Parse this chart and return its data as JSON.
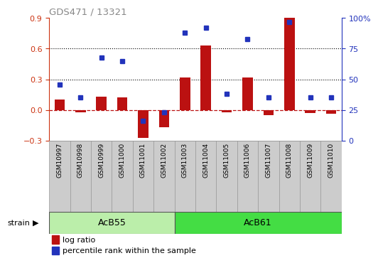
{
  "title": "GDS471 / 13321",
  "samples": [
    "GSM10997",
    "GSM10998",
    "GSM10999",
    "GSM11000",
    "GSM11001",
    "GSM11002",
    "GSM11003",
    "GSM11004",
    "GSM11005",
    "GSM11006",
    "GSM11007",
    "GSM11008",
    "GSM11009",
    "GSM11010"
  ],
  "log_ratio": [
    0.1,
    -0.02,
    0.13,
    0.12,
    -0.27,
    -0.17,
    0.32,
    0.63,
    -0.02,
    0.32,
    -0.05,
    0.9,
    -0.03,
    -0.04
  ],
  "percentile_rank": [
    46,
    35,
    68,
    65,
    16,
    23,
    88,
    92,
    38,
    83,
    35,
    97,
    35,
    35
  ],
  "strains": [
    {
      "label": "AcB55",
      "start": 0,
      "end": 5
    },
    {
      "label": "AcB61",
      "start": 6,
      "end": 13
    }
  ],
  "ylim_left": [
    -0.3,
    0.9
  ],
  "ylim_right": [
    0,
    100
  ],
  "yticks_left": [
    -0.3,
    0.0,
    0.3,
    0.6,
    0.9
  ],
  "yticks_right": [
    0,
    25,
    50,
    75,
    100
  ],
  "hlines": [
    0.3,
    0.6
  ],
  "bar_color": "#bb1111",
  "dot_color": "#2233bb",
  "strain_colors": [
    "#bbeeaa",
    "#44dd44"
  ],
  "strain_border_color": "#555555",
  "legend_labels": [
    "log ratio",
    "percentile rank within the sample"
  ],
  "left_tick_color": "#cc3311",
  "right_tick_color": "#2233bb",
  "title_color": "#888888",
  "sample_box_color": "#cccccc",
  "sample_box_edge": "#999999",
  "bar_width": 0.5
}
